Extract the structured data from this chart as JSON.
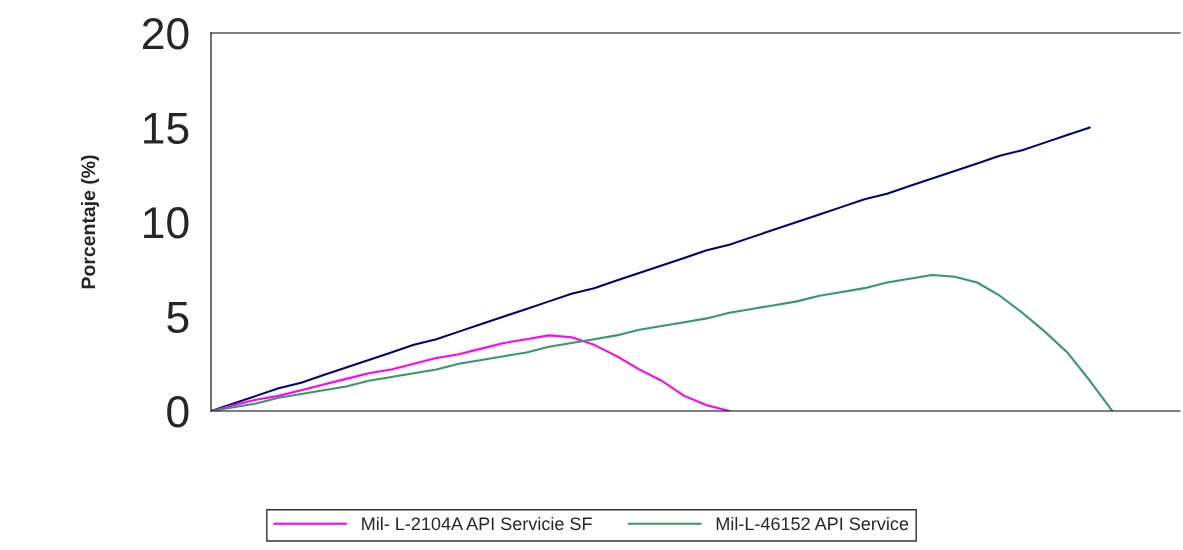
{
  "chart_data": {
    "type": "line",
    "ylabel": "Porcentaje (%)",
    "categories": [
      null,
      null,
      null,
      null,
      null,
      null,
      null,
      null,
      null,
      null,
      null,
      null,
      null,
      null,
      null,
      null,
      null,
      null,
      null,
      null,
      null,
      null,
      null,
      null,
      null,
      null,
      null,
      null,
      null,
      null,
      null,
      null,
      null,
      null,
      null,
      null,
      null,
      null,
      null,
      null,
      null,
      null,
      null,
      null
    ],
    "series": [
      {
        "color": "#000080",
        "values": [
          0,
          0.4,
          0.8,
          1.2,
          1.5,
          1.9,
          2.3,
          2.7,
          3.1,
          3.5,
          3.8,
          4.2,
          4.6,
          5.0,
          5.4,
          5.8,
          6.2,
          6.5,
          6.9,
          7.3,
          7.7,
          8.1,
          8.5,
          8.8,
          9.2,
          9.6,
          10.0,
          10.4,
          10.8,
          11.2,
          11.5,
          11.9,
          12.3,
          12.7,
          13.1,
          13.5,
          13.8,
          14.2,
          14.6,
          15.0,
          null,
          null,
          null,
          null
        ]
      },
      {
        "name": "Mil- L-2104A API Servicie SF",
        "color": "#ff00ff",
        "values": [
          0,
          0.3,
          0.6,
          0.8,
          1.1,
          1.4,
          1.7,
          2.0,
          2.2,
          2.5,
          2.8,
          3.0,
          3.3,
          3.6,
          3.8,
          4.0,
          3.9,
          3.5,
          2.9,
          2.2,
          1.6,
          0.8,
          0.3,
          0,
          null,
          null,
          null,
          null,
          null,
          null,
          null,
          null,
          null,
          null,
          null,
          null,
          null,
          null,
          null,
          null,
          null,
          null,
          null,
          null
        ]
      },
      {
        "name": "Mil-L-46152 API Service",
        "color": "#339966",
        "values": [
          0,
          0.2,
          0.4,
          0.7,
          0.9,
          1.1,
          1.3,
          1.6,
          1.8,
          2.0,
          2.2,
          2.5,
          2.7,
          2.9,
          3.1,
          3.4,
          3.6,
          3.8,
          4.0,
          4.3,
          4.5,
          4.7,
          4.9,
          5.2,
          5.4,
          5.6,
          5.8,
          6.1,
          6.3,
          6.5,
          6.8,
          7.0,
          7.2,
          7.1,
          6.8,
          6.1,
          5.2,
          4.2,
          3.1,
          1.6,
          0,
          null,
          null,
          null
        ]
      }
    ],
    "ylim": [
      0,
      20
    ],
    "yticks": [
      0,
      5,
      10,
      15,
      20
    ],
    "grid": false,
    "legend": "bottom",
    "marker": "none",
    "line_style": "solid"
  }
}
